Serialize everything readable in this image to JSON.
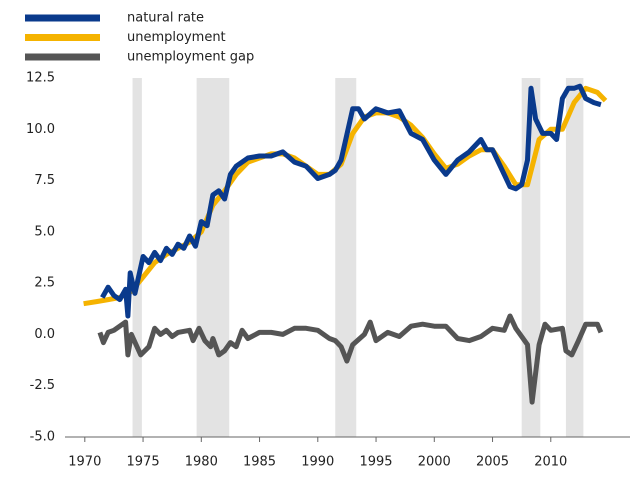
{
  "chart_data": {
    "type": "line",
    "xlim": [
      1968.3,
      2016.8
    ],
    "ylim": [
      -5.0,
      12.5
    ],
    "xticks": [
      1970,
      1975,
      1980,
      1985,
      1990,
      1995,
      2000,
      2005,
      2010
    ],
    "yticks": [
      {
        "value": 12.5,
        "label": "12.5"
      },
      {
        "value": 10,
        "label": "10.0"
      },
      {
        "value": 7.5,
        "label": "7.5"
      },
      {
        "value": 5,
        "label": "5.0"
      },
      {
        "value": 2.5,
        "label": "2.5"
      },
      {
        "value": 0,
        "label": "0.0"
      },
      {
        "value": -2.5,
        "label": "-2.5"
      },
      {
        "value": -5,
        "label": "-5.0"
      }
    ],
    "shaded_periods": [
      [
        1974.1,
        1974.9
      ],
      [
        1979.6,
        1982.4
      ],
      [
        1991.5,
        1993.3
      ],
      [
        2007.5,
        2009.1
      ],
      [
        2011.3,
        2012.8
      ]
    ],
    "shade_color": "#e3e3e3",
    "legend": "top-left",
    "series": [
      {
        "name": "natural rate",
        "color": "#0a3a8c",
        "x": [
          1971.5,
          1972,
          1972.5,
          1973,
          1973.5,
          1973.7,
          1973.9,
          1974.3,
          1975,
          1975.5,
          1976,
          1976.5,
          1977,
          1977.5,
          1978,
          1978.5,
          1979,
          1979.5,
          1980,
          1980.5,
          1981,
          1981.5,
          1982,
          1982.5,
          1983,
          1984,
          1985,
          1986,
          1987,
          1988,
          1989,
          1990,
          1991,
          1991.5,
          1992,
          1993,
          1993.5,
          1994,
          1995,
          1996,
          1997,
          1998,
          1999,
          2000,
          2001,
          2002,
          2003,
          2004,
          2004.5,
          2005,
          2006,
          2006.5,
          2007,
          2007.5,
          2008,
          2008.3,
          2008.7,
          2009.3,
          2010,
          2010.5,
          2011,
          2011.5,
          2012,
          2012.5,
          2013,
          2013.7,
          2014.3
        ],
        "values": [
          1.8,
          2.3,
          1.9,
          1.7,
          2.2,
          0.9,
          3.0,
          2.0,
          3.8,
          3.5,
          4.0,
          3.6,
          4.2,
          3.9,
          4.4,
          4.2,
          4.8,
          4.3,
          5.5,
          5.3,
          6.8,
          7.0,
          6.6,
          7.8,
          8.2,
          8.6,
          8.7,
          8.7,
          8.9,
          8.4,
          8.2,
          7.6,
          7.8,
          8.0,
          8.5,
          11.0,
          11.0,
          10.5,
          11.0,
          10.8,
          10.9,
          9.8,
          9.5,
          8.5,
          7.8,
          8.5,
          8.9,
          9.5,
          9.0,
          9.0,
          7.8,
          7.2,
          7.1,
          7.3,
          8.5,
          12.0,
          10.5,
          9.8,
          9.8,
          9.5,
          11.5,
          12.0,
          12.0,
          12.1,
          11.5,
          11.3,
          11.2
        ]
      },
      {
        "name": "unemployment",
        "color": "#f5b300",
        "x": [
          1969.9,
          1971,
          1972,
          1973,
          1974,
          1975,
          1976,
          1977,
          1978,
          1979,
          1980,
          1981,
          1982,
          1983,
          1984,
          1985,
          1986,
          1987,
          1988,
          1989,
          1990,
          1991,
          1992,
          1993,
          1994,
          1995,
          1996,
          1997,
          1998,
          1999,
          2000,
          2001,
          2002,
          2003,
          2004,
          2005,
          2006,
          2007,
          2008,
          2009,
          2010,
          2011,
          2012,
          2013,
          2014,
          2014.7
        ],
        "values": [
          1.5,
          1.6,
          1.7,
          1.8,
          2.1,
          2.8,
          3.5,
          3.9,
          4.2,
          4.5,
          5.0,
          6.3,
          7.0,
          7.8,
          8.4,
          8.6,
          8.8,
          8.8,
          8.6,
          8.2,
          7.8,
          7.8,
          8.3,
          9.8,
          10.6,
          10.8,
          10.8,
          10.6,
          10.2,
          9.6,
          8.8,
          8.1,
          8.3,
          8.7,
          9.0,
          9.0,
          8.2,
          7.3,
          7.3,
          9.5,
          10.0,
          10.0,
          11.3,
          12.0,
          11.8,
          11.4
        ]
      },
      {
        "name": "unemployment gap",
        "color": "#555555",
        "x": [
          1971.3,
          1971.6,
          1972,
          1972.5,
          1973.5,
          1973.7,
          1974,
          1974.8,
          1975.5,
          1976,
          1976.5,
          1977,
          1977.5,
          1978,
          1979,
          1979.3,
          1979.8,
          1980.3,
          1980.8,
          1981,
          1981.5,
          1982,
          1982.5,
          1983,
          1983.5,
          1984,
          1985,
          1986,
          1987,
          1988,
          1989,
          1990,
          1991,
          1991.5,
          1992,
          1992.5,
          1993,
          1994,
          1994.5,
          1995,
          1996,
          1997,
          1998,
          1999,
          2000,
          2001,
          2002,
          2003,
          2004,
          2005,
          2006,
          2006.5,
          2007,
          2008,
          2008.4,
          2009,
          2009.5,
          2010,
          2011,
          2011.3,
          2011.8,
          2012.3,
          2013,
          2014,
          2014.3
        ],
        "values": [
          0.1,
          -0.4,
          0.1,
          0.2,
          0.6,
          -1.0,
          0.0,
          -1.0,
          -0.6,
          0.3,
          0.0,
          0.2,
          -0.1,
          0.1,
          0.2,
          -0.3,
          0.3,
          -0.3,
          -0.6,
          -0.2,
          -1.0,
          -0.8,
          -0.4,
          -0.6,
          0.2,
          -0.2,
          0.1,
          0.1,
          0.0,
          0.3,
          0.3,
          0.2,
          -0.2,
          -0.3,
          -0.6,
          -1.3,
          -0.5,
          0.0,
          0.6,
          -0.3,
          0.1,
          -0.1,
          0.4,
          0.5,
          0.4,
          0.4,
          -0.2,
          -0.3,
          -0.1,
          0.3,
          0.2,
          0.9,
          0.3,
          -0.5,
          -3.3,
          -0.5,
          0.5,
          0.2,
          0.3,
          -0.8,
          -1.0,
          -0.4,
          0.5,
          0.5,
          0.1
        ]
      }
    ]
  }
}
